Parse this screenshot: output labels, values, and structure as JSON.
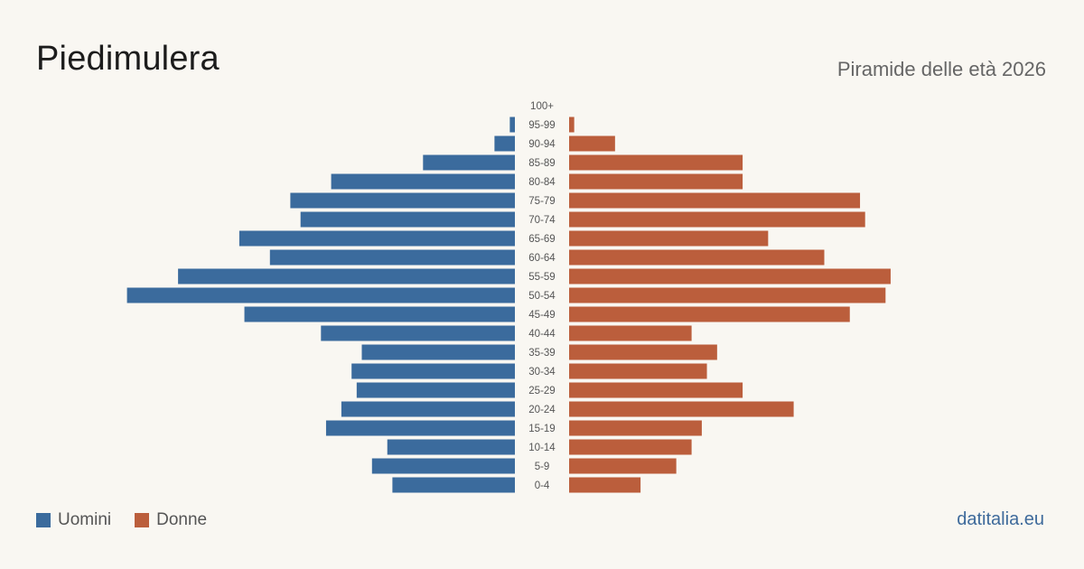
{
  "header": {
    "title": "Piedimulera",
    "subtitle": "Piramide delle età 2026"
  },
  "legend": {
    "men_label": "Uomini",
    "women_label": "Donne"
  },
  "footer": {
    "source": "datitalia.eu"
  },
  "colors": {
    "men": "#3b6b9d",
    "women": "#bb5e3c",
    "background": "#f9f7f2"
  },
  "chart_data": {
    "type": "bar",
    "orientation": "horizontal-pyramid",
    "categories": [
      "100+",
      "95-99",
      "90-94",
      "85-89",
      "80-84",
      "75-79",
      "70-74",
      "65-69",
      "60-64",
      "55-59",
      "50-54",
      "45-49",
      "40-44",
      "35-39",
      "30-34",
      "25-29",
      "20-24",
      "15-19",
      "10-14",
      "5-9",
      "0-4"
    ],
    "series": [
      {
        "name": "Uomini",
        "side": "left",
        "values": [
          0,
          1,
          4,
          18,
          36,
          44,
          42,
          54,
          48,
          66,
          76,
          53,
          38,
          30,
          32,
          31,
          34,
          37,
          25,
          28,
          24
        ]
      },
      {
        "name": "Donne",
        "side": "right",
        "values": [
          0,
          1,
          9,
          34,
          34,
          57,
          58,
          39,
          50,
          63,
          62,
          55,
          24,
          29,
          27,
          34,
          44,
          26,
          24,
          21,
          14
        ]
      }
    ],
    "grid": false,
    "legend_position": "bottom-left"
  }
}
